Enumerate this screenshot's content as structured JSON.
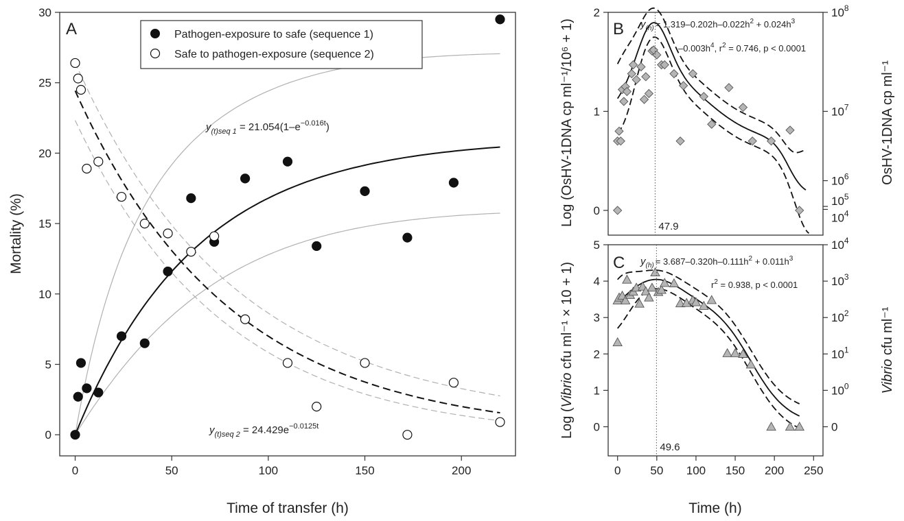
{
  "chart_data": [
    {
      "panel": "A",
      "type": "scatter",
      "xlabel": "Time of transfer (h)",
      "ylabel": "Mortality (%)",
      "xlim": [
        -8,
        228
      ],
      "ylim": [
        -1.5,
        30
      ],
      "xticks": [
        0,
        50,
        100,
        150,
        200
      ],
      "yticks": [
        0,
        5,
        10,
        15,
        20,
        25,
        30
      ],
      "legend_position": "top",
      "legend": [
        {
          "marker": "filled-circle",
          "label": "Pathogen-exposure to safe (sequence 1)"
        },
        {
          "marker": "open-circle",
          "label": "Safe to pathogen-exposure (sequence 2)"
        }
      ],
      "series": [
        {
          "name": "Pathogen-exposure to safe (sequence 1)",
          "marker": "filled-circle",
          "x": [
            0,
            1.5,
            3,
            6,
            12,
            24,
            36,
            48,
            60,
            72,
            88,
            110,
            125,
            150,
            172,
            196,
            220
          ],
          "y": [
            0,
            2.7,
            5.1,
            3.3,
            3.0,
            7.0,
            6.5,
            11.6,
            16.8,
            13.7,
            18.2,
            19.4,
            13.4,
            17.3,
            14.0,
            17.9,
            29.5
          ]
        },
        {
          "name": "Safe to pathogen-exposure (sequence 2)",
          "marker": "open-circle",
          "x": [
            0,
            1.5,
            3,
            6,
            12,
            24,
            36,
            48,
            60,
            72,
            88,
            110,
            125,
            150,
            172,
            196,
            220
          ],
          "y": [
            26.4,
            25.3,
            24.5,
            18.9,
            19.4,
            16.9,
            15.0,
            14.3,
            13.0,
            14.1,
            8.2,
            5.1,
            2.0,
            5.1,
            0.0,
            3.7,
            0.9
          ]
        }
      ],
      "fits": [
        {
          "model": "exp_rise",
          "a": 21.054,
          "k": 0.016,
          "line": "solid-black"
        },
        {
          "model": "exp_decay",
          "a": 24.429,
          "k": 0.0125,
          "line": "dashed-black"
        }
      ],
      "equations": {
        "seq1_lhs": "y",
        "seq1_sub": "(t)seq 1",
        "seq1_rhs": " = 21.054(1–e",
        "seq1_sup": "−0.016t",
        "seq1_close": ")",
        "seq2_lhs": "y",
        "seq2_sub": "(t)seq 2",
        "seq2_rhs": " = 24.429e",
        "seq2_sup": "−0.0125t"
      }
    },
    {
      "panel": "B",
      "type": "scatter",
      "xlim": [
        -12,
        262
      ],
      "ylim": [
        -0.25,
        2
      ],
      "yticks": [
        0,
        1,
        2
      ],
      "ylabel": "Log (OsHV-1DNA cp ml⁻¹/10⁶ + 1)",
      "y2label": "OsHV-1DNA cp ml⁻¹",
      "right_ticks": [
        {
          "y": 2.0,
          "base": "10",
          "exp": "8"
        },
        {
          "y": 1.0,
          "base": "10",
          "exp": "7"
        },
        {
          "y": 0.3,
          "base": "10",
          "exp": "6"
        },
        {
          "y": 0.04,
          "base": "10",
          "exp": "5"
        },
        {
          "y": 0.01,
          "base": "10",
          "exp": "4"
        }
      ],
      "vline_x": 47.9,
      "vline_label": "47.9",
      "marker": "grey-diamond",
      "x": [
        0,
        0,
        2,
        4,
        6,
        8,
        10,
        12,
        18,
        20,
        24,
        30,
        34,
        36,
        40,
        44,
        46,
        50,
        56,
        60,
        72,
        80,
        84,
        96,
        110,
        120,
        142,
        160,
        172,
        196,
        220,
        232
      ],
      "y": [
        0.0,
        0.7,
        0.8,
        0.7,
        1.22,
        1.1,
        1.25,
        1.2,
        1.38,
        1.47,
        1.32,
        1.45,
        1.12,
        1.35,
        1.18,
        1.61,
        1.62,
        1.57,
        1.47,
        1.47,
        1.38,
        0.7,
        1.26,
        1.38,
        1.15,
        0.87,
        1.24,
        1.04,
        0.7,
        0.7,
        0.81,
        0.0
      ],
      "fit_polynomial_scaled": [
        1.319,
        -0.202,
        -0.022,
        0.024,
        -0.003
      ],
      "equation": {
        "lhs": "y",
        "sub": "(h)",
        "line1": "= 1.319–0.202h–0.022h",
        "line1_sup1": "2",
        "line1_rest": " + 0.024h",
        "line1_sup2": "3",
        "line2": "–0.003h",
        "line2_sup": "4",
        "line2_rest": ", r",
        "line2_sup2": "2",
        "line2_tail": " = 0.746,  p < 0.0001"
      }
    },
    {
      "panel": "C",
      "type": "scatter",
      "xlabel": "Time (h)",
      "xlim": [
        -12,
        262
      ],
      "ylim": [
        -0.8,
        5
      ],
      "xticks": [
        0,
        50,
        100,
        150,
        200,
        250
      ],
      "yticks": [
        0,
        1,
        2,
        3,
        4,
        5
      ],
      "ylabel_parts": [
        "Log (",
        "Vibrio",
        " cfu ml⁻¹ × 10 + 1)"
      ],
      "y2label_parts": [
        "Vibrio",
        " cfu ml⁻¹"
      ],
      "right_ticks": [
        {
          "y": 5,
          "base": "10",
          "exp": "4"
        },
        {
          "y": 4,
          "base": "10",
          "exp": "3"
        },
        {
          "y": 3,
          "base": "10",
          "exp": "2"
        },
        {
          "y": 2,
          "base": "10",
          "exp": "1"
        },
        {
          "y": 1,
          "base": "10",
          "exp": "0"
        },
        {
          "y": 0,
          "base": "0",
          "exp": ""
        }
      ],
      "vline_x": 49.6,
      "vline_label": "49.6",
      "marker": "grey-triangle",
      "x": [
        0,
        0,
        2,
        6,
        10,
        12,
        16,
        20,
        24,
        28,
        32,
        36,
        40,
        44,
        48,
        52,
        56,
        60,
        72,
        80,
        88,
        96,
        100,
        110,
        120,
        140,
        150,
        160,
        170,
        196,
        220,
        232
      ],
      "y": [
        2.32,
        3.47,
        3.55,
        3.6,
        3.47,
        4.04,
        3.62,
        3.71,
        3.82,
        3.38,
        3.85,
        3.72,
        3.55,
        3.82,
        4.24,
        3.7,
        3.76,
        3.95,
        3.94,
        3.39,
        3.4,
        3.48,
        3.42,
        3.32,
        3.48,
        2.02,
        2.02,
        2.0,
        1.71,
        0.0,
        0.0,
        0.0
      ],
      "fit_polynomial_scaled": [
        3.687,
        -0.32,
        -0.111,
        0.011
      ],
      "equation": {
        "lhs": "y",
        "sub": "(h)",
        "line1": "= 3.687–0.320h–0.111h",
        "line1_sup1": "2",
        "line1_rest": " + 0.011h",
        "line1_sup2": "3",
        "line2_pre": "r",
        "line2_sup": "2",
        "line2_tail": " = 0.938,  p < 0.0001"
      }
    }
  ]
}
